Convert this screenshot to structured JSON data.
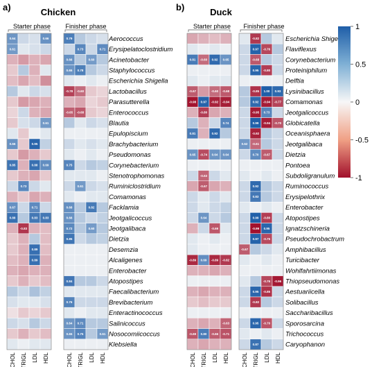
{
  "chart_data": {
    "type": "heatmap",
    "colorbar": {
      "range": [
        -1,
        1
      ],
      "ticks": [
        "1",
        "0.5",
        "0",
        "-0.5",
        "-1"
      ],
      "low_color": "#a10f2b",
      "mid_color": "#f7f7f7",
      "high_color": "#1f5ea8"
    },
    "panels": [
      {
        "letter": "a)",
        "title": "Chicken",
        "phases": [
          "Starter phase",
          "Finisher phase"
        ],
        "columns": [
          "CHOL",
          "TRIGL",
          "LDL",
          "HDL"
        ],
        "rows": [
          "Aerococcus",
          "Erysipelatoclostridium",
          "Acinetobacter",
          "Staphylococcus",
          "Escherichia Shigella",
          "Lactobacillus",
          "Parasutterella",
          "Enterococcus",
          "Blautia",
          "Epulopiscium",
          "Brachybacterium",
          "Pseudomonas",
          "Corynebacterium",
          "Stenotrophomonas",
          "Ruminiclostridium",
          "Comamonas",
          "Facklamia",
          "Jeotgalicoccus",
          "Jeotgalibaca",
          "Dietzia",
          "Desemzia",
          "Alcaligenes",
          "Enterobacter",
          "Atopostipes",
          "Faecalibacterium",
          "Brevibacterium",
          "Enteractinococcus",
          "Salinicoccus",
          "Nosocomiicoccus",
          "Klebsiella"
        ],
        "starter": [
          [
            0.64,
            0.2,
            0.15,
            0.66
          ],
          [
            0.61,
            0.1,
            0.15,
            0.2
          ],
          [
            -0.3,
            -0.4,
            -0.3,
            -0.35
          ],
          [
            -0.2,
            0.3,
            -0.3,
            0.1
          ],
          [
            -0.25,
            -0.35,
            -0.25,
            -0.45
          ],
          [
            0.3,
            0.1,
            0.2,
            0.15
          ],
          [
            -0.2,
            -0.4,
            -0.35,
            -0.3
          ],
          [
            -0.15,
            0.2,
            -0.3,
            -0.35
          ],
          [
            -0.2,
            0.15,
            0.2,
            0.61
          ],
          [
            0.1,
            -0.2,
            0.05,
            0.1
          ],
          [
            0.66,
            -0.2,
            0.95,
            0.25
          ],
          [
            -0.2,
            -0.4,
            -0.3,
            -0.2
          ],
          [
            0.85,
            -0.3,
            0.88,
            0.69
          ],
          [
            -0.2,
            -0.3,
            -0.35,
            -0.2
          ],
          [
            0.2,
            0.73,
            0.2,
            0.1
          ],
          [
            -0.3,
            -0.2,
            -0.35,
            -0.3
          ],
          [
            0.67,
            0.2,
            0.71,
            0.2
          ],
          [
            0.88,
            0.3,
            0.83,
            0.83
          ],
          [
            -0.3,
            -0.83,
            -0.3,
            -0.25
          ],
          [
            -0.2,
            -0.3,
            0.3,
            -0.25
          ],
          [
            -0.2,
            -0.3,
            0.89,
            -0.25
          ],
          [
            -0.25,
            -0.3,
            0.89,
            -0.3
          ],
          [
            -0.3,
            -0.35,
            -0.3,
            -0.3
          ],
          [
            -0.2,
            -0.3,
            -0.2,
            -0.25
          ],
          [
            0.3,
            0.2,
            0.35,
            0.25
          ],
          [
            0.15,
            0.1,
            0.1,
            0.15
          ],
          [
            -0.1,
            -0.2,
            -0.15,
            -0.2
          ],
          [
            0.2,
            0.15,
            0.3,
            0.2
          ],
          [
            -0.2,
            -0.3,
            -0.2,
            -0.25
          ],
          [
            0.1,
            0.05,
            0.1,
            0.1
          ]
        ],
        "finisher": [
          [
            0.79,
            0.3,
            0.2,
            0.15
          ],
          [
            0.2,
            0.73,
            0.2,
            0.71
          ],
          [
            0.66,
            0.3,
            0.6,
            0.3
          ],
          [
            0.65,
            0.78,
            0.3,
            0.2
          ],
          [
            0.1,
            0.05,
            0.1,
            0.05
          ],
          [
            -0.78,
            -0.6,
            -0.2,
            -0.15
          ],
          [
            -0.3,
            -0.35,
            -0.15,
            -0.2
          ],
          [
            -0.65,
            -0.68,
            -0.2,
            -0.15
          ],
          [
            0.3,
            0.1,
            0.2,
            0.15
          ],
          [
            0.05,
            0.05,
            0.05,
            0.05
          ],
          [
            0.2,
            0.1,
            0.15,
            0.1
          ],
          [
            0.1,
            0.05,
            0.1,
            0.05
          ],
          [
            0.75,
            0.2,
            0.3,
            0.25
          ],
          [
            0.1,
            0.1,
            0.1,
            0.05
          ],
          [
            0.2,
            0.61,
            0.2,
            0.15
          ],
          [
            0.1,
            0.05,
            0.1,
            0.1
          ],
          [
            0.68,
            0.3,
            0.82,
            0.3
          ],
          [
            0.66,
            0.3,
            0.2,
            0.25
          ],
          [
            0.72,
            0.3,
            0.6,
            0.3
          ],
          [
            0.85,
            0.2,
            0.3,
            0.25
          ],
          [
            0.05,
            0.05,
            0.05,
            0.05
          ],
          [
            0.05,
            0.05,
            0.05,
            0.05
          ],
          [
            0.05,
            0.05,
            0.05,
            0.05
          ],
          [
            0.84,
            0.3,
            0.3,
            0.2
          ],
          [
            0.1,
            0.1,
            0.1,
            0.1
          ],
          [
            0.76,
            0.2,
            0.2,
            0.2
          ],
          [
            0.1,
            0.05,
            0.1,
            0.1
          ],
          [
            0.64,
            0.71,
            0.3,
            0.3
          ],
          [
            0.65,
            0.75,
            0.3,
            0.61
          ],
          [
            0.05,
            0.05,
            0.05,
            0.05
          ]
        ]
      },
      {
        "letter": "b)",
        "title": "Duck",
        "phases": [
          "Starter phase",
          "Finisher phase"
        ],
        "columns": [
          "CHOL",
          "TRIGL",
          "LDL",
          "HDL"
        ],
        "rows": [
          "Escherichia Shigella",
          "Flaviflexus",
          "Corynebacterium",
          "Proteiniphilum",
          "Delftia",
          "Lysinibacillus",
          "Comamonas",
          "Jeotgalicoccus",
          "Globicatella",
          "Oceanisphaera",
          "Jeotgalibaca",
          "Dietzia",
          "Pontoea",
          "Subdoligranulum",
          "Ruminococcus",
          "Erysipelothrix",
          "Enterobacter",
          "Atopostipes",
          "Ignatzschineria",
          "Pseudochrobactrum",
          "Amphibacillus",
          "Turicibacter",
          "Wohlfahrtiimonas",
          "Thiopseudomonas",
          "Aestuariicella",
          "Solibacillus",
          "Saccharibacillus",
          "Sporosarcina",
          "Trichococcus",
          "Caryophanon"
        ],
        "starter": [
          [
            -0.35,
            -0.3,
            -0.25,
            -0.3
          ],
          [
            0.1,
            0.05,
            0.1,
            0.05
          ],
          [
            0.81,
            -0.6,
            0.92,
            0.65
          ],
          [
            0.05,
            0.05,
            0.05,
            0.05
          ],
          [
            0.1,
            0.05,
            0.1,
            0.1
          ],
          [
            -0.67,
            -0.4,
            -0.6,
            -0.68
          ],
          [
            -0.98,
            0.97,
            -0.92,
            -0.94
          ],
          [
            -0.3,
            -0.8,
            -0.35,
            -0.3
          ],
          [
            0.3,
            -0.3,
            0.2,
            0.74
          ],
          [
            0.81,
            -0.3,
            0.92,
            0.3
          ],
          [
            0.05,
            0.05,
            0.05,
            0.05
          ],
          [
            0.65,
            -0.74,
            0.64,
            0.64
          ],
          [
            0.05,
            0.05,
            0.05,
            0.05
          ],
          [
            0.2,
            -0.63,
            0.2,
            0.1
          ],
          [
            -0.35,
            -0.67,
            -0.35,
            -0.3
          ],
          [
            0.2,
            0.1,
            0.2,
            0.1
          ],
          [
            0.2,
            0.1,
            0.2,
            0.25
          ],
          [
            0.2,
            0.64,
            0.2,
            0.3
          ],
          [
            -0.3,
            0.2,
            -0.69,
            0.1
          ],
          [
            0.1,
            0.05,
            0.1,
            0.05
          ],
          [
            0.1,
            0.05,
            0.05,
            0.05
          ],
          [
            -0.89,
            0.69,
            -0.89,
            -0.82
          ],
          [
            -0.3,
            -0.3,
            -0.35,
            -0.3
          ],
          [
            0.05,
            0.05,
            0.05,
            0.05
          ],
          [
            -0.3,
            -0.35,
            -0.3,
            -0.3
          ],
          [
            -0.2,
            -0.25,
            -0.2,
            -0.2
          ],
          [
            0.05,
            0.05,
            0.05,
            0.05
          ],
          [
            -0.3,
            -0.35,
            -0.3,
            -0.63
          ],
          [
            -0.69,
            0.8,
            -0.66,
            -0.71
          ],
          [
            -0.3,
            -0.35,
            -0.3,
            -0.3
          ]
        ],
        "finisher": [
          [
            0.1,
            -0.82,
            0.3,
            0.1
          ],
          [
            0.2,
            0.97,
            -0.76,
            0.3
          ],
          [
            0.2,
            -0.68,
            0.3,
            0.2
          ],
          [
            0.2,
            0.95,
            -0.8,
            0.2
          ],
          [
            0.05,
            0.05,
            0.05,
            0.05
          ],
          [
            0.3,
            -0.85,
            1.0,
            0.93
          ],
          [
            0.3,
            0.92,
            -0.94,
            -0.77
          ],
          [
            0.2,
            -0.95,
            0.73,
            0.2
          ],
          [
            0.2,
            0.99,
            -0.94,
            -0.7
          ],
          [
            0.2,
            -0.92,
            0.3,
            0.2
          ],
          [
            0.62,
            -0.61,
            0.3,
            0.2
          ],
          [
            0.2,
            0.7,
            -0.67,
            0.2
          ],
          [
            0.05,
            0.05,
            0.05,
            0.05
          ],
          [
            0.1,
            0.05,
            0.1,
            0.05
          ],
          [
            0.2,
            0.92,
            0.3,
            0.2
          ],
          [
            0.2,
            0.83,
            0.3,
            0.2
          ],
          [
            0.1,
            0.05,
            0.1,
            0.05
          ],
          [
            0.2,
            0.99,
            -0.8,
            0.2
          ],
          [
            0.2,
            -0.99,
            0.95,
            0.2
          ],
          [
            0.2,
            0.97,
            -0.75,
            0.2
          ],
          [
            -0.67,
            0.3,
            0.2,
            0.1
          ],
          [
            0.1,
            0.05,
            0.1,
            0.05
          ],
          [
            0.05,
            0.05,
            0.05,
            0.05
          ],
          [
            0.1,
            0.3,
            -0.76,
            -0.96
          ],
          [
            0.2,
            0.95,
            -0.85,
            0.2
          ],
          [
            0.2,
            -0.82,
            0.3,
            0.2
          ],
          [
            0.05,
            0.05,
            0.05,
            0.05
          ],
          [
            0.2,
            0.95,
            -0.7,
            0.2
          ],
          [
            0.1,
            0.05,
            0.1,
            0.05
          ],
          [
            0.2,
            0.87,
            0.3,
            0.2
          ]
        ]
      }
    ]
  }
}
